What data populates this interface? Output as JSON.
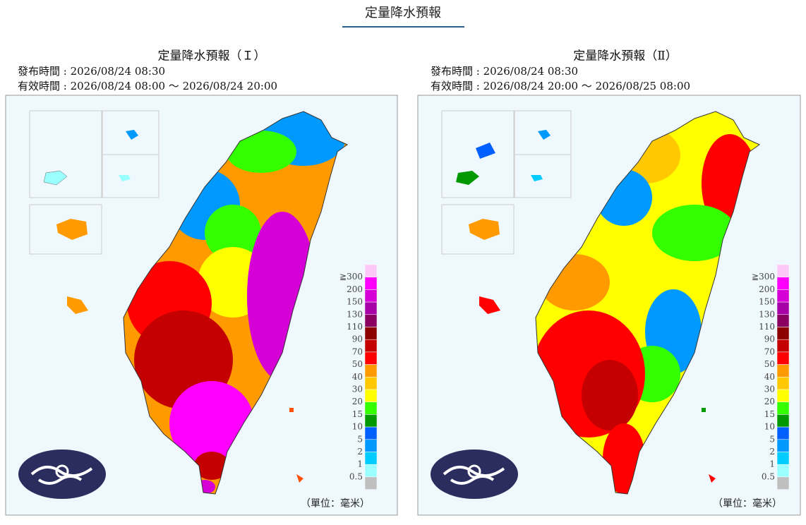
{
  "header": {
    "title": "定量降水預報"
  },
  "panels": [
    {
      "title": "定量降水預報（Ｉ）",
      "issued": "發布時間 : 2026/08/24 08:30",
      "valid": "有效時間 : 2026/08/24 08:00 ～ 2026/08/24 20:00",
      "unit": "（單位：毫米）"
    },
    {
      "title": "定量降水預報（Ⅱ）",
      "issued": "發布時間 : 2026/08/24 08:30",
      "valid": "有效時間 : 2026/08/24 20:00 ～ 2026/08/25 08:00",
      "unit": "（單位：毫米）"
    }
  ],
  "legend": {
    "colors": [
      "#fcc8f8",
      "#ff00ff",
      "#d600d6",
      "#a800a8",
      "#8a0060",
      "#8c0000",
      "#c40000",
      "#ff0000",
      "#ff9a00",
      "#ffc800",
      "#ffff00",
      "#33ff00",
      "#009a00",
      "#0060ff",
      "#0099ff",
      "#00ccff",
      "#99ffff",
      "#bfbfbf"
    ],
    "labels": [
      "≧300",
      "200",
      "150",
      "130",
      "110",
      "90",
      "70",
      "50",
      "40",
      "30",
      "20",
      "15",
      "10",
      "5",
      "2",
      "1",
      "0.5"
    ]
  }
}
